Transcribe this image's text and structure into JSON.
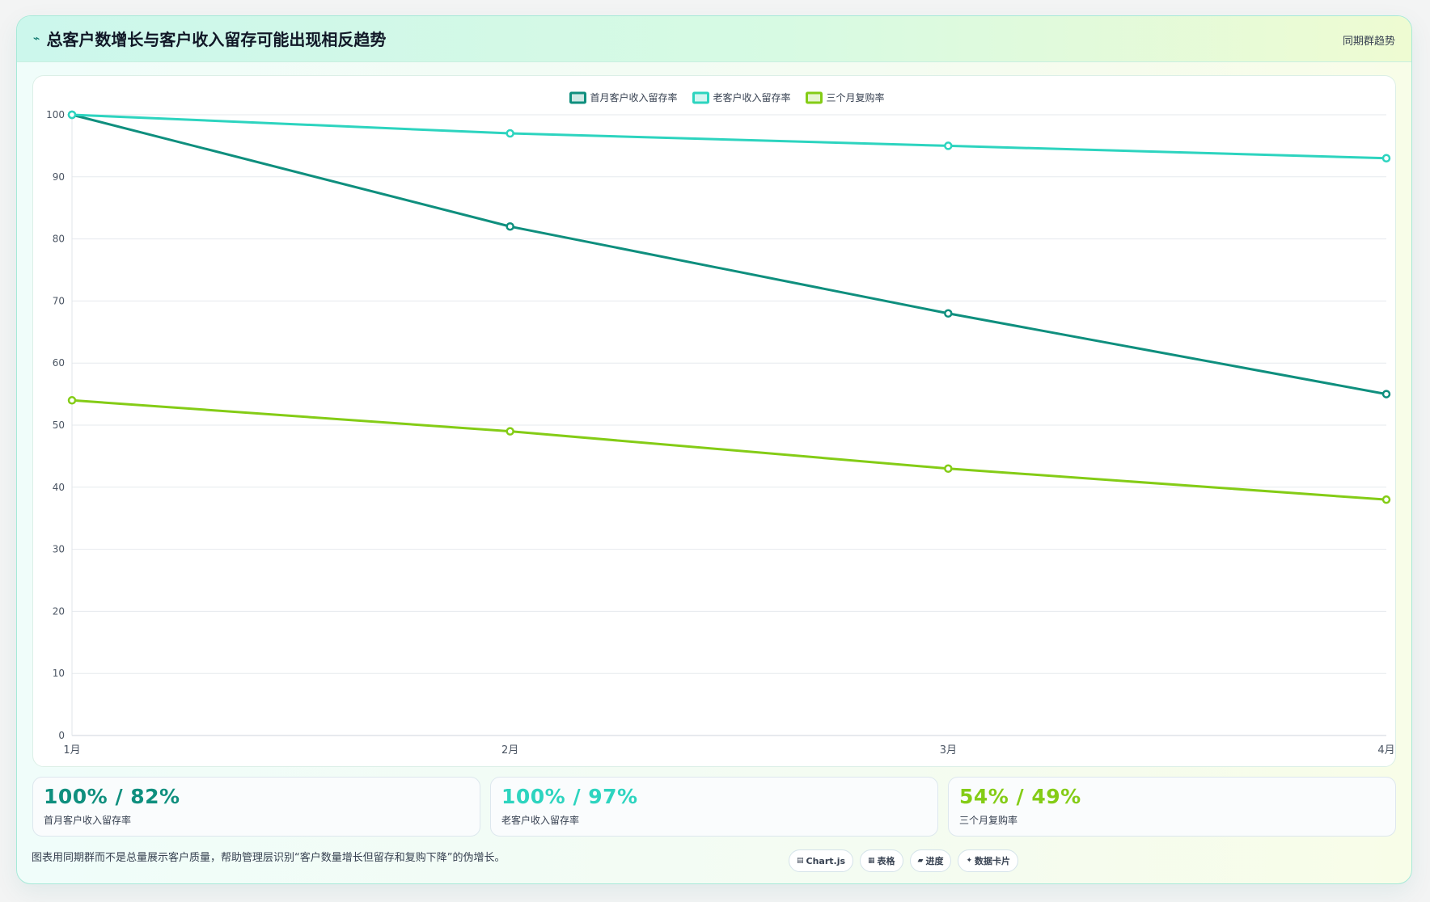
{
  "header": {
    "title": "总客户数增长与客户收入留存可能出现相反趋势",
    "tag": "同期群趋势",
    "icon": "bolt-icon"
  },
  "chart_data": {
    "type": "line",
    "categories": [
      "1月",
      "2月",
      "3月",
      "4月"
    ],
    "series": [
      {
        "name": "首月客户收入留存率",
        "values": [
          100,
          82,
          68,
          55
        ],
        "color": "#0f8f7e"
      },
      {
        "name": "老客户收入留存率",
        "values": [
          100,
          97,
          95,
          93
        ],
        "color": "#2dd4bf"
      },
      {
        "name": "三个月复购率",
        "values": [
          54,
          49,
          43,
          38
        ],
        "color": "#84cc16"
      }
    ],
    "ylim": [
      0,
      100
    ],
    "yticks": [
      0,
      10,
      20,
      30,
      40,
      50,
      60,
      70,
      80,
      90,
      100
    ],
    "grid": true,
    "legend": "top-center",
    "xlabel": "",
    "ylabel": ""
  },
  "stats": [
    {
      "value": "100% / 82%",
      "label": "首月客户收入留存率",
      "color": "#0f8f7e"
    },
    {
      "value": "100% / 97%",
      "label": "老客户收入留存率",
      "color": "#2dd4bf"
    },
    {
      "value": "54% / 49%",
      "label": "三个月复购率",
      "color": "#84cc16"
    }
  ],
  "footer": {
    "note": "图表用同期群而不是总量展示客户质量，帮助管理层识别“客户数量增长但留存和复购下降”的伪增长。",
    "chips": [
      {
        "icon": "▤",
        "icon_name": "chart-icon",
        "label": "Chart.js"
      },
      {
        "icon": "▦",
        "icon_name": "table-icon",
        "label": "表格"
      },
      {
        "icon": "▰",
        "icon_name": "progress-icon",
        "label": "进度"
      },
      {
        "icon": "✦",
        "icon_name": "sparkle-icon",
        "label": "数据卡片"
      }
    ]
  }
}
